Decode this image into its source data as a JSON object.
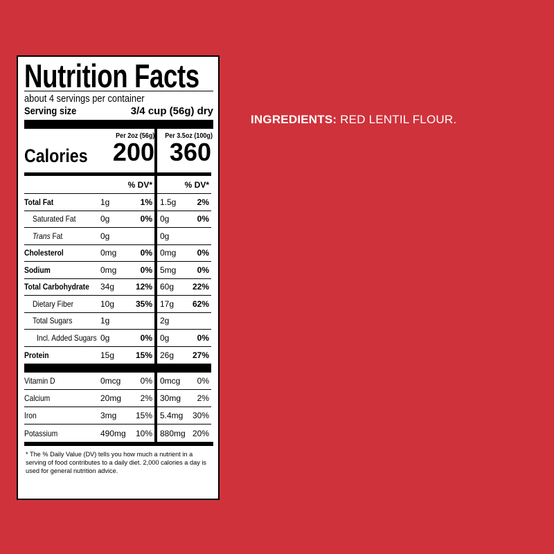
{
  "panel": {
    "title": "Nutrition Facts",
    "servings_per_container": "about 4 servings per container",
    "serving_size_label": "Serving size",
    "serving_size_value": "3/4 cup (56g) dry",
    "col1_header": "Per 2oz (56g)",
    "col2_header": "Per 3.5oz (100g)",
    "calories_label": "Calories",
    "calories_col1": "200",
    "calories_col2": "360",
    "dv_header": "% DV*",
    "nutrients": [
      {
        "name": "Total Fat",
        "a1": "1g",
        "p1": "1%",
        "a2": "1.5g",
        "p2": "2%"
      },
      {
        "name": "Saturated Fat",
        "a1": "0g",
        "p1": "0%",
        "a2": "0g",
        "p2": "0%"
      },
      {
        "name_italic": "Trans",
        "name": " Fat",
        "a1": "0g",
        "p1": "",
        "a2": "0g",
        "p2": ""
      },
      {
        "name": "Cholesterol",
        "a1": "0mg",
        "p1": "0%",
        "a2": "0mg",
        "p2": "0%"
      },
      {
        "name": "Sodium",
        "a1": "0mg",
        "p1": "0%",
        "a2": "5mg",
        "p2": "0%"
      },
      {
        "name": "Total Carbohydrate",
        "a1": "34g",
        "p1": "12%",
        "a2": "60g",
        "p2": "22%"
      },
      {
        "name": "Dietary Fiber",
        "a1": "10g",
        "p1": "35%",
        "a2": "17g",
        "p2": "62%"
      },
      {
        "name": "Total Sugars",
        "a1": "1g",
        "p1": "",
        "a2": "2g",
        "p2": ""
      },
      {
        "name": "Incl. Added Sugars",
        "a1": "0g",
        "p1": "0%",
        "a2": "0g",
        "p2": "0%"
      },
      {
        "name": "Protein",
        "a1": "15g",
        "p1": "15%",
        "a2": "26g",
        "p2": "27%"
      }
    ],
    "vitamins": [
      {
        "name": "Vitamin D",
        "a1": "0mcg",
        "p1": "0%",
        "a2": "0mcg",
        "p2": "0%"
      },
      {
        "name": "Calcium",
        "a1": "20mg",
        "p1": "2%",
        "a2": "30mg",
        "p2": "2%"
      },
      {
        "name": "Iron",
        "a1": "3mg",
        "p1": "15%",
        "a2": "5.4mg",
        "p2": "30%"
      },
      {
        "name": "Potassium",
        "a1": "490mg",
        "p1": "10%",
        "a2": "880mg",
        "p2": "20%"
      }
    ],
    "footnote": "* The % Daily Value (DV) tells you how much a nutrient in a serving of food contributes to a daily diet. 2,000 calories a day is used for general nutrition advice."
  },
  "ingredients": {
    "label": "INGREDIENTS:",
    "text": " RED LENTIL FLOUR."
  },
  "colors": {
    "background": "#cf323b",
    "panel": "#ffffff",
    "ink": "#000000"
  }
}
